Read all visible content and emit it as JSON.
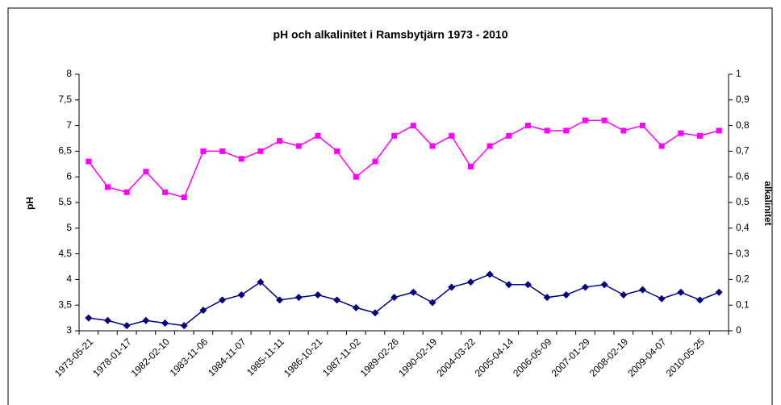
{
  "chart_data": {
    "type": "line",
    "title": "pH och alkalinitet i Ramsbytjärn 1973 - 2010",
    "y_label": "pH",
    "y2_label": "alkalinitet",
    "categories": [
      "1973-05-21",
      null,
      "1978-01-17",
      null,
      "1982-02-10",
      null,
      "1983-11-06",
      null,
      "1984-11-07",
      null,
      "1985-11-11",
      null,
      "1986-10-21",
      null,
      "1987-11-02",
      null,
      "1989-02-26",
      null,
      "1990-02-19",
      null,
      "2004-03-22",
      null,
      "2005-04-14",
      null,
      "2006-05-09",
      null,
      "2007-01-29",
      null,
      "2008-02-19",
      null,
      "2009-04-07",
      null,
      "2010-05-25",
      null
    ],
    "series": [
      {
        "color": "#ff00ff",
        "marker": "square",
        "axis": "y",
        "values": [
          6.3,
          5.8,
          5.7,
          6.1,
          5.7,
          5.6,
          6.5,
          6.5,
          6.35,
          6.5,
          6.7,
          6.6,
          6.8,
          6.5,
          6.0,
          6.3,
          6.8,
          7.0,
          6.6,
          6.8,
          6.2,
          6.6,
          6.8,
          7.0,
          6.9,
          6.9,
          7.1,
          7.1,
          6.9,
          7.0,
          6.6,
          6.85,
          6.8,
          6.9
        ]
      },
      {
        "color": "#000080",
        "marker": "diamond",
        "axis": "y2",
        "values": [
          0.05,
          0.04,
          0.02,
          0.04,
          0.03,
          0.02,
          0.08,
          0.12,
          0.14,
          0.19,
          0.12,
          0.13,
          0.14,
          0.12,
          0.09,
          0.07,
          0.13,
          0.15,
          0.11,
          0.17,
          0.19,
          0.22,
          0.18,
          0.18,
          0.13,
          0.14,
          0.17,
          0.18,
          0.14,
          0.16,
          0.125,
          0.15,
          0.12,
          0.15
        ]
      }
    ],
    "ylim": [
      3,
      8
    ],
    "yticks": [
      3,
      {
        "value": 3.5,
        "label": "3,5"
      },
      4,
      {
        "value": 4.5,
        "label": "4,5"
      },
      5,
      {
        "value": 5.5,
        "label": "5,5"
      },
      6,
      {
        "value": 6.5,
        "label": "6,5"
      },
      7,
      {
        "value": 7.5,
        "label": "7,5"
      },
      8
    ],
    "y2lim": [
      0,
      1
    ],
    "y2ticks": [
      0,
      {
        "value": 0.1,
        "label": "0,1"
      },
      {
        "value": 0.2,
        "label": "0,2"
      },
      {
        "value": 0.3,
        "label": "0,3"
      },
      {
        "value": 0.4,
        "label": "0,4"
      },
      {
        "value": 0.5,
        "label": "0,5"
      },
      {
        "value": 0.6,
        "label": "0,6"
      },
      {
        "value": 0.7,
        "label": "0,7"
      },
      {
        "value": 0.8,
        "label": "0,8"
      },
      {
        "value": 0.9,
        "label": "0,9"
      },
      1
    ],
    "grid": false
  }
}
